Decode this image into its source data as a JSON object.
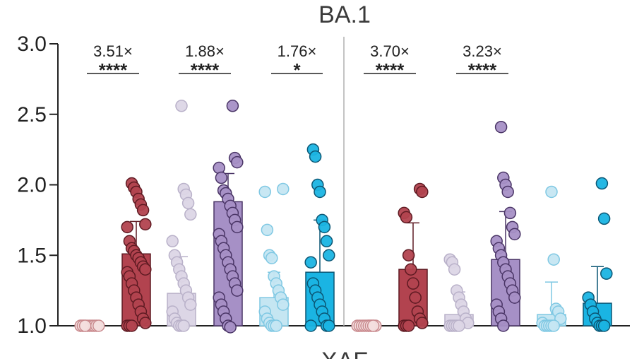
{
  "chart_data": {
    "type": "bar",
    "title": "BA.1",
    "xlabel": "XAF",
    "ylabel": "",
    "ylim": [
      1.0,
      3.0
    ],
    "yticks": [
      "1.0",
      "1.5",
      "2.0",
      "2.5",
      "3.0"
    ],
    "groups": [
      {
        "name": "left",
        "bars": [
          {
            "color": "#f3dede",
            "edge": "#c98a8e",
            "mean": 1.0,
            "sd": 0.0,
            "points": [
              1.0,
              1.0,
              1.0,
              1.0,
              1.0,
              1.0,
              1.0,
              1.0,
              1.0,
              1.0,
              1.0,
              1.0
            ]
          },
          {
            "color": "#b2434f",
            "edge": "#5e1a22",
            "mean": 1.51,
            "sd": 0.23,
            "points": [
              2.01,
              1.98,
              1.95,
              1.9,
              1.86,
              1.82,
              1.72,
              1.7,
              1.6,
              1.55,
              1.53,
              1.5,
              1.48,
              1.45,
              1.42,
              1.4,
              1.38,
              1.35,
              1.3,
              1.25,
              1.2,
              1.15,
              1.1,
              1.05,
              1.02,
              1.0,
              1.0,
              1.0
            ]
          },
          {
            "color": "#dcd6e6",
            "edge": "#b9b1c9",
            "mean": 1.23,
            "sd": 0.26,
            "points": [
              2.56,
              1.97,
              1.93,
              1.87,
              1.79,
              1.6,
              1.5,
              1.45,
              1.4,
              1.35,
              1.3,
              1.25,
              1.2,
              1.15,
              1.1,
              1.05,
              1.02,
              1.0,
              1.0,
              1.0
            ]
          },
          {
            "color": "#a690c6",
            "edge": "#4a3566",
            "mean": 1.88,
            "sd": 0.2,
            "points": [
              2.56,
              2.19,
              2.16,
              2.12,
              2.05,
              1.96,
              1.94,
              1.9,
              1.85,
              1.8,
              1.75,
              1.7,
              1.65,
              1.6,
              1.55,
              1.5,
              1.45,
              1.4,
              1.35,
              1.3,
              1.25,
              1.2,
              1.15,
              1.1,
              1.05,
              1.0,
              0.99
            ]
          },
          {
            "color": "#c5e6f2",
            "edge": "#7fc8e3",
            "mean": 1.2,
            "sd": 0.18,
            "points": [
              1.97,
              1.95,
              1.68,
              1.5,
              1.48,
              1.35,
              1.3,
              1.25,
              1.2,
              1.15,
              1.1,
              1.05,
              1.02,
              1.0,
              1.0,
              1.0
            ]
          },
          {
            "color": "#1ab4e3",
            "edge": "#0b5674",
            "mean": 1.38,
            "sd": 0.37,
            "points": [
              2.25,
              2.2,
              2.0,
              1.95,
              1.75,
              1.7,
              1.6,
              1.5,
              1.45,
              1.3,
              1.25,
              1.2,
              1.15,
              1.1,
              1.05,
              1.0,
              1.0,
              1.0
            ]
          }
        ]
      },
      {
        "name": "right",
        "bars": [
          {
            "color": "#f3dede",
            "edge": "#c98a8e",
            "mean": 1.0,
            "sd": 0.0,
            "points": [
              1.0,
              1.0,
              1.0,
              1.0,
              1.0,
              1.0,
              1.0,
              1.0,
              1.0,
              1.0,
              1.0,
              1.0
            ]
          },
          {
            "color": "#b2434f",
            "edge": "#5e1a22",
            "mean": 1.4,
            "sd": 0.33,
            "points": [
              1.97,
              1.95,
              1.8,
              1.77,
              1.5,
              1.4,
              1.3,
              1.2,
              1.1,
              1.05,
              1.02,
              1.0,
              1.0,
              1.0
            ]
          },
          {
            "color": "#dcd6e6",
            "edge": "#b9b1c9",
            "mean": 1.08,
            "sd": 0.16,
            "points": [
              1.47,
              1.45,
              1.4,
              1.25,
              1.2,
              1.15,
              1.1,
              1.05,
              1.02,
              1.0,
              1.0,
              1.0,
              1.0,
              1.0
            ]
          },
          {
            "color": "#a690c6",
            "edge": "#4a3566",
            "mean": 1.47,
            "sd": 0.34,
            "points": [
              2.41,
              2.05,
              2.0,
              1.95,
              1.8,
              1.7,
              1.65,
              1.6,
              1.55,
              1.5,
              1.45,
              1.4,
              1.35,
              1.3,
              1.25,
              1.2,
              1.15,
              1.1,
              1.05,
              1.0
            ]
          },
          {
            "color": "#c5e6f2",
            "edge": "#7fc8e3",
            "mean": 1.08,
            "sd": 0.23,
            "points": [
              1.95,
              1.47,
              1.12,
              1.1,
              1.05,
              1.02,
              1.0,
              1.0,
              1.0,
              1.0,
              1.0
            ]
          },
          {
            "color": "#1ab4e3",
            "edge": "#0b5674",
            "mean": 1.16,
            "sd": 0.26,
            "points": [
              2.01,
              1.76,
              1.37,
              1.2,
              1.15,
              1.1,
              1.05,
              1.02,
              1.0,
              1.0,
              1.0
            ]
          }
        ]
      }
    ],
    "annotations": [
      {
        "group": 0,
        "from": 0,
        "to": 1,
        "fold": "3.51×",
        "sig": "****"
      },
      {
        "group": 0,
        "from": 2,
        "to": 3,
        "fold": "1.88×",
        "sig": "****"
      },
      {
        "group": 0,
        "from": 4,
        "to": 5,
        "fold": "1.76×",
        "sig": "*"
      },
      {
        "group": 1,
        "from": 0,
        "to": 1,
        "fold": "3.70×",
        "sig": "****"
      },
      {
        "group": 1,
        "from": 2,
        "to": 3,
        "fold": "3.23×",
        "sig": "****"
      }
    ]
  }
}
